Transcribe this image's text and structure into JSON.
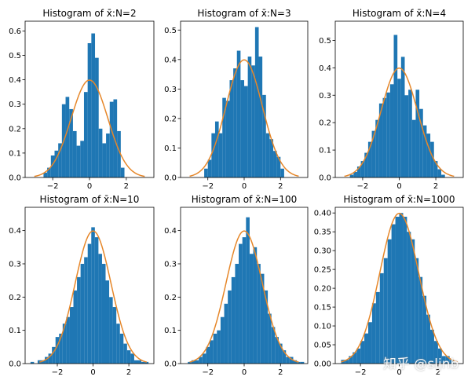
{
  "watermark": "知乎 @sljnb",
  "style": {
    "bar_color": "#1f77b4",
    "curve_color": "#e6872a"
  },
  "chart_data": [
    {
      "type": "bar",
      "title": "Histogram of x̄:N=2",
      "xlim": [
        -3.5,
        3.5
      ],
      "ylim": [
        0,
        0.64
      ],
      "xticks": [
        -2,
        0,
        2
      ],
      "xtick_labels": [
        "−2",
        "0",
        "2"
      ],
      "yticks": [
        0,
        0.1,
        0.2,
        0.3,
        0.4,
        0.5,
        0.6
      ],
      "ytick_labels": [
        "0.0",
        "0.1",
        "0.2",
        "0.3",
        "0.4",
        "0.5",
        "0.6"
      ],
      "bin_edges": [
        -2.5,
        -2.3,
        -2.1,
        -1.9,
        -1.7,
        -1.5,
        -1.3,
        -1.1,
        -0.9,
        -0.7,
        -0.5,
        -0.3,
        -0.1,
        0.1,
        0.3,
        0.5,
        0.7,
        0.9,
        1.1,
        1.3,
        1.5,
        1.7,
        1.9
      ],
      "density": [
        0.02,
        0.04,
        0.09,
        0.11,
        0.14,
        0.3,
        0.33,
        0.28,
        0.19,
        0.13,
        0.15,
        0.35,
        0.55,
        0.59,
        0.49,
        0.2,
        0.14,
        0.18,
        0.31,
        0.32,
        0.19,
        0.04
      ],
      "curve": "normal pdf"
    },
    {
      "type": "bar",
      "title": "Histogram of x̄:N=3",
      "xlim": [
        -3.5,
        3.5
      ],
      "ylim": [
        0,
        0.53
      ],
      "xticks": [
        -2,
        0,
        2
      ],
      "xtick_labels": [
        "−2",
        "0",
        "2"
      ],
      "yticks": [
        0,
        0.1,
        0.2,
        0.3,
        0.4,
        0.5
      ],
      "ytick_labels": [
        "0.0",
        "0.1",
        "0.2",
        "0.3",
        "0.4",
        "0.5"
      ],
      "bin_edges": [
        -2.2,
        -2.0,
        -1.8,
        -1.6,
        -1.4,
        -1.2,
        -1.0,
        -0.8,
        -0.6,
        -0.4,
        -0.2,
        0.0,
        0.2,
        0.4,
        0.6,
        0.8,
        1.0,
        1.2,
        1.4,
        1.6,
        1.8,
        2.0,
        2.2
      ],
      "density": [
        0.03,
        0.06,
        0.15,
        0.19,
        0.15,
        0.27,
        0.26,
        0.33,
        0.37,
        0.43,
        0.33,
        0.31,
        0.41,
        0.38,
        0.51,
        0.41,
        0.28,
        0.15,
        0.13,
        0.09,
        0.07,
        0.03
      ],
      "curve": "normal pdf"
    },
    {
      "type": "bar",
      "title": "Histogram of x̄:N=4",
      "xlim": [
        -3.5,
        3.5
      ],
      "ylim": [
        0,
        0.57
      ],
      "xticks": [
        -2,
        0,
        2
      ],
      "xtick_labels": [
        "−2",
        "0",
        "2"
      ],
      "yticks": [
        0,
        0.1,
        0.2,
        0.3,
        0.4,
        0.5
      ],
      "ytick_labels": [
        "0.0",
        "0.1",
        "0.2",
        "0.3",
        "0.4",
        "0.5"
      ],
      "bin_edges": [
        -2.7,
        -2.5,
        -2.3,
        -2.1,
        -1.9,
        -1.7,
        -1.5,
        -1.3,
        -1.1,
        -0.9,
        -0.7,
        -0.5,
        -0.3,
        -0.1,
        0.1,
        0.3,
        0.5,
        0.7,
        0.9,
        1.1,
        1.3,
        1.5,
        1.7,
        1.9,
        2.1,
        2.3,
        2.5
      ],
      "density": [
        0.01,
        0.02,
        0.04,
        0.06,
        0.09,
        0.13,
        0.17,
        0.21,
        0.27,
        0.29,
        0.31,
        0.34,
        0.52,
        0.36,
        0.44,
        0.3,
        0.32,
        0.21,
        0.32,
        0.25,
        0.19,
        0.16,
        0.13,
        0.06,
        0.03,
        0.01
      ],
      "curve": "normal pdf"
    },
    {
      "type": "bar",
      "title": "Histogram of x̄:N=10",
      "xlim": [
        -3.8,
        3.4
      ],
      "ylim": [
        0,
        0.47
      ],
      "xticks": [
        -2,
        0,
        2
      ],
      "xtick_labels": [
        "−2",
        "0",
        "2"
      ],
      "yticks": [
        0,
        0.1,
        0.2,
        0.3,
        0.4
      ],
      "ytick_labels": [
        "0.0",
        "0.1",
        "0.2",
        "0.3",
        "0.4"
      ],
      "bin_edges": [
        -3.5,
        -3.3,
        -3.1,
        -2.9,
        -2.7,
        -2.5,
        -2.3,
        -2.1,
        -1.9,
        -1.7,
        -1.5,
        -1.3,
        -1.1,
        -0.9,
        -0.7,
        -0.5,
        -0.3,
        -0.1,
        0.1,
        0.3,
        0.5,
        0.7,
        0.9,
        1.1,
        1.3,
        1.5,
        1.7,
        1.9,
        2.1,
        2.3,
        2.5,
        2.7,
        2.9,
        3.1
      ],
      "density": [
        0.005,
        0.0,
        0.01,
        0.01,
        0.02,
        0.03,
        0.05,
        0.08,
        0.09,
        0.12,
        0.14,
        0.17,
        0.22,
        0.26,
        0.3,
        0.32,
        0.36,
        0.41,
        0.38,
        0.33,
        0.3,
        0.25,
        0.2,
        0.17,
        0.12,
        0.09,
        0.06,
        0.04,
        0.03,
        0.01,
        0.01,
        0.005,
        0.005
      ],
      "curve": "normal pdf"
    },
    {
      "type": "bar",
      "title": "Histogram of x̄:N=100",
      "xlim": [
        -3.5,
        3.5
      ],
      "ylim": [
        0,
        0.47
      ],
      "xticks": [
        -2,
        0,
        2
      ],
      "xtick_labels": [
        "−2",
        "0",
        "2"
      ],
      "yticks": [
        0,
        0.1,
        0.2,
        0.3,
        0.4
      ],
      "ytick_labels": [
        "0.0",
        "0.1",
        "0.2",
        "0.3",
        "0.4"
      ],
      "bin_edges": [
        -3.1,
        -2.9,
        -2.7,
        -2.5,
        -2.3,
        -2.1,
        -1.9,
        -1.7,
        -1.5,
        -1.3,
        -1.1,
        -0.9,
        -0.7,
        -0.5,
        -0.3,
        -0.1,
        0.1,
        0.3,
        0.5,
        0.7,
        0.9,
        1.1,
        1.3,
        1.5,
        1.7,
        1.9,
        2.1,
        2.3,
        2.5,
        2.7,
        2.9,
        3.1,
        3.3
      ],
      "density": [
        0.005,
        0.01,
        0.01,
        0.02,
        0.03,
        0.05,
        0.07,
        0.09,
        0.1,
        0.14,
        0.18,
        0.22,
        0.26,
        0.3,
        0.36,
        0.38,
        0.44,
        0.33,
        0.35,
        0.3,
        0.27,
        0.22,
        0.15,
        0.11,
        0.08,
        0.06,
        0.04,
        0.02,
        0.02,
        0.01,
        0.005,
        0.005
      ],
      "curve": "normal pdf"
    },
    {
      "type": "bar",
      "title": "Histogram of x̄:N=1000",
      "xlim": [
        -3.3,
        3.3
      ],
      "ylim": [
        0,
        0.415
      ],
      "xticks": [
        -2,
        0,
        2
      ],
      "xtick_labels": [
        "−2",
        "0",
        "2"
      ],
      "yticks": [
        0,
        0.05,
        0.1,
        0.15,
        0.2,
        0.25,
        0.3,
        0.35,
        0.4
      ],
      "ytick_labels": [
        "0.00",
        "0.05",
        "0.10",
        "0.15",
        "0.20",
        "0.25",
        "0.30",
        "0.35",
        "0.40"
      ],
      "bin_edges": [
        -3.0,
        -2.8,
        -2.6,
        -2.4,
        -2.2,
        -2.0,
        -1.8,
        -1.6,
        -1.4,
        -1.2,
        -1.0,
        -0.8,
        -0.6,
        -0.4,
        -0.2,
        0.0,
        0.2,
        0.4,
        0.6,
        0.8,
        1.0,
        1.2,
        1.4,
        1.6,
        1.8,
        2.0,
        2.2,
        2.4,
        2.6,
        2.8
      ],
      "density": [
        0.01,
        0.01,
        0.02,
        0.03,
        0.04,
        0.06,
        0.08,
        0.11,
        0.16,
        0.19,
        0.24,
        0.28,
        0.33,
        0.37,
        0.39,
        0.4,
        0.39,
        0.35,
        0.33,
        0.28,
        0.23,
        0.18,
        0.13,
        0.09,
        0.06,
        0.04,
        0.02,
        0.02,
        0.01
      ],
      "curve": "normal pdf"
    }
  ]
}
